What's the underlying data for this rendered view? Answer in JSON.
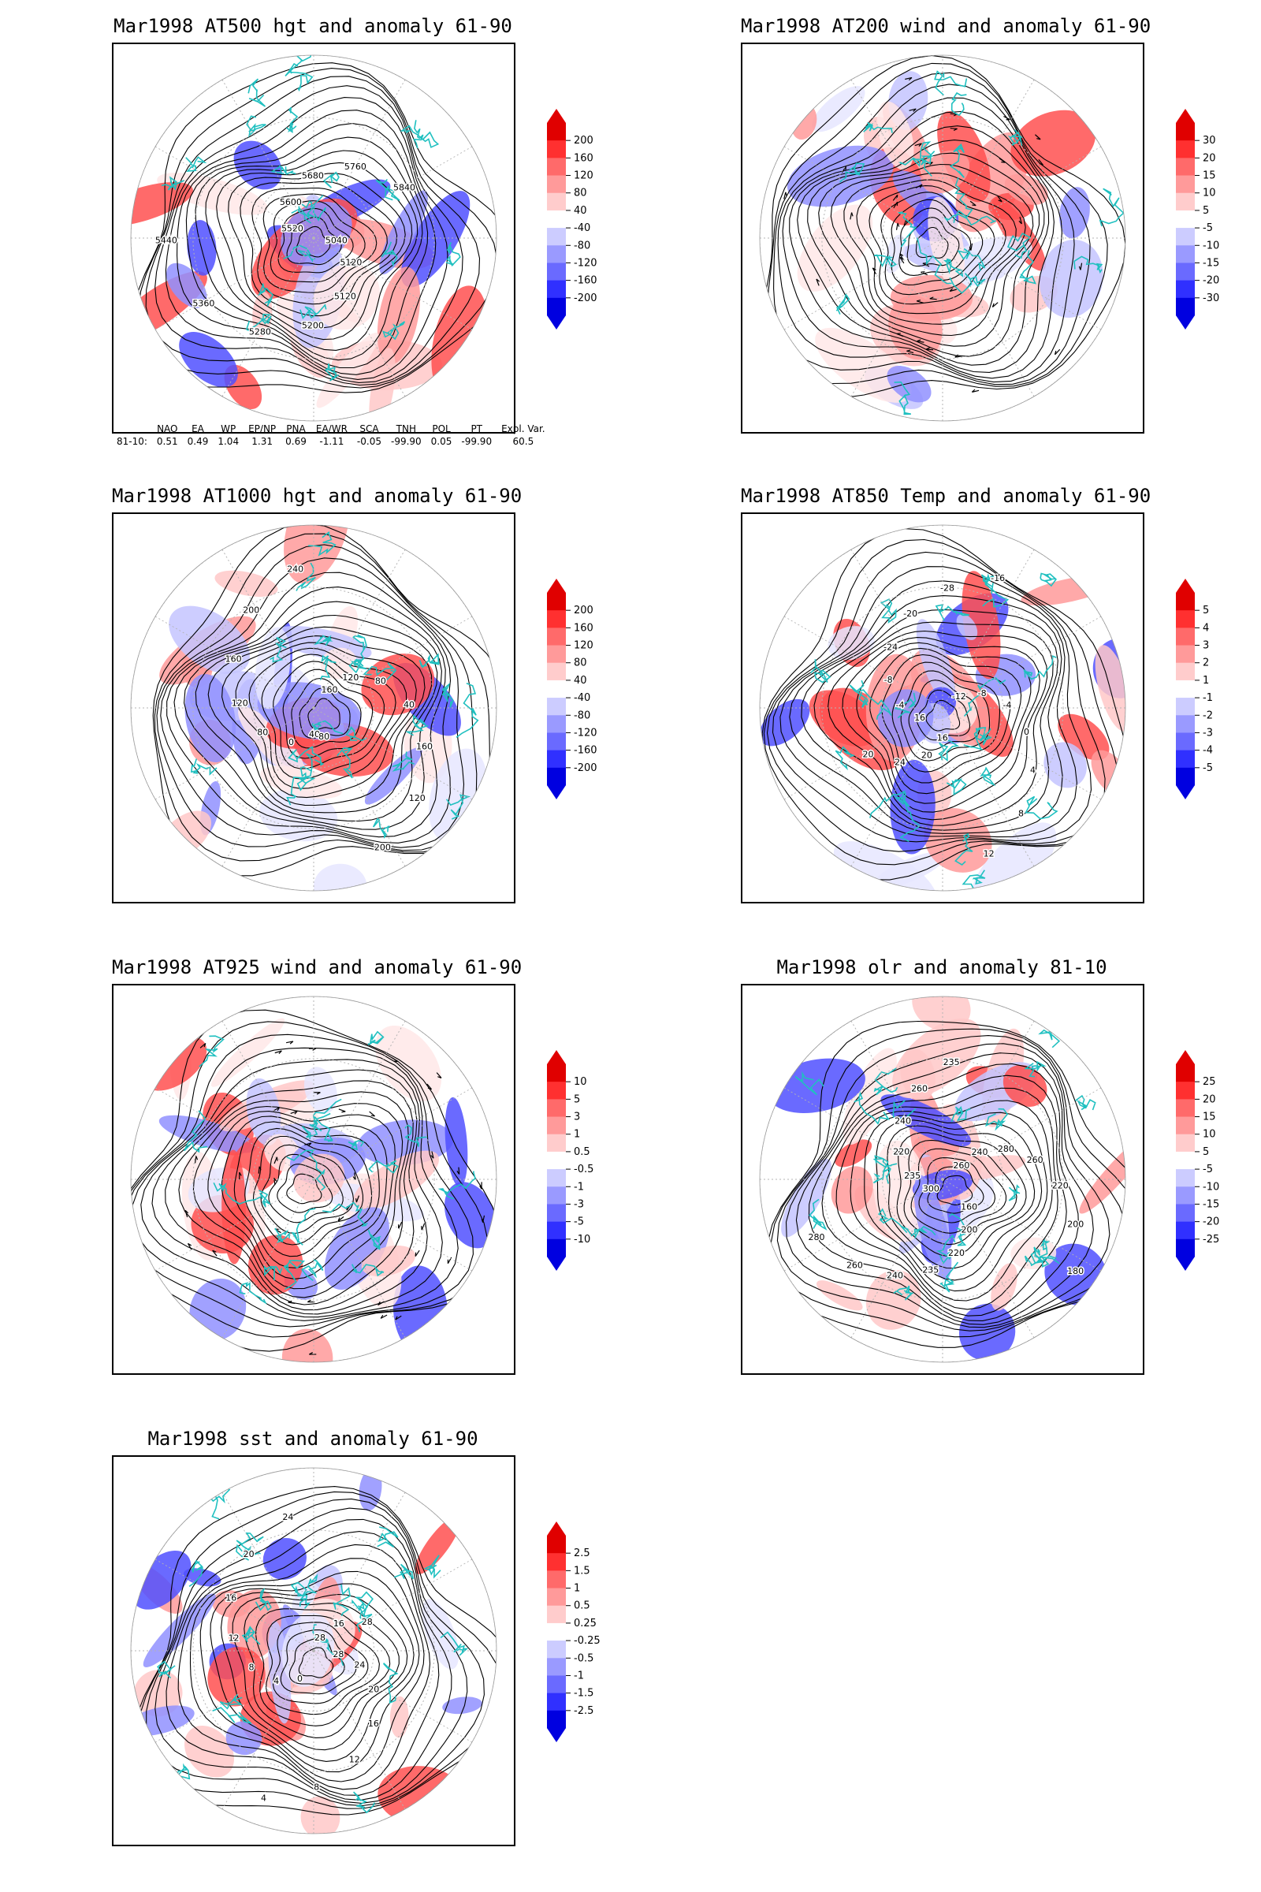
{
  "colors": {
    "coast": "#20c0c0",
    "contour": "#000000",
    "grid": "#b4b4b4",
    "pos": [
      "#ffe8e8",
      "#ffc8c8",
      "#ff9a9a",
      "#ff5050",
      "#e00000"
    ],
    "neg": [
      "#e6e6ff",
      "#c4c4ff",
      "#9090ff",
      "#5050ff",
      "#1a1aee"
    ]
  },
  "panels": [
    {
      "id": "hgt500",
      "title": "Mar1998 AT500 hgt and anomaly 61-90",
      "colorbar": [
        "200",
        "160",
        "120",
        "80",
        "40",
        "-40",
        "-80",
        "-120",
        "-160",
        "-200"
      ],
      "contour_labels": [
        "5040",
        "5120",
        "5120",
        "5200",
        "5280",
        "5360",
        "5440",
        "5520",
        "5600",
        "5680",
        "5760",
        "5840"
      ],
      "has_wind_arrows": false
    },
    {
      "id": "wind200",
      "title": "Mar1998 AT200 wind and anomaly 61-90",
      "colorbar": [
        "30",
        "20",
        "15",
        "10",
        "5",
        "-5",
        "-10",
        "-15",
        "-20",
        "-30"
      ],
      "contour_labels": [],
      "has_wind_arrows": true
    },
    {
      "id": "hgt1000",
      "title": "Mar1998 AT1000 hgt and anomaly 61-90",
      "colorbar": [
        "200",
        "160",
        "120",
        "80",
        "40",
        "-40",
        "-80",
        "-120",
        "-160",
        "-200"
      ],
      "contour_labels": [
        "40",
        "0",
        "80",
        "120",
        "160",
        "200",
        "240",
        "160",
        "120",
        "80",
        "40",
        "160",
        "120",
        "200",
        "80"
      ],
      "has_wind_arrows": false
    },
    {
      "id": "temp850",
      "title": "Mar1998 AT850 Temp and anomaly 61-90",
      "colorbar": [
        "5",
        "4",
        "3",
        "2",
        "1",
        "-1",
        "-2",
        "-3",
        "-4",
        "-5"
      ],
      "contour_labels": [
        "16",
        "-4",
        "-8",
        "-24",
        "-20",
        "-28",
        "-16",
        "-12",
        "-8",
        "-4",
        "0",
        "4",
        "8",
        "12",
        "16",
        "20",
        "24",
        "20"
      ],
      "has_wind_arrows": false
    },
    {
      "id": "wind925",
      "title": "Mar1998 AT925 wind and anomaly 61-90",
      "colorbar": [
        "10",
        "5",
        "3",
        "1",
        "0.5",
        "-0.5",
        "-1",
        "-3",
        "-5",
        "-10"
      ],
      "contour_labels": [],
      "has_wind_arrows": true
    },
    {
      "id": "olr",
      "title": "Mar1998 olr and anomaly 81-10",
      "colorbar": [
        "25",
        "20",
        "15",
        "10",
        "5",
        "-5",
        "-10",
        "-15",
        "-20",
        "-25"
      ],
      "contour_labels": [
        "260",
        "240",
        "280",
        "260",
        "220",
        "200",
        "180",
        "160",
        "200",
        "220",
        "235",
        "240",
        "260",
        "280",
        "300",
        "235",
        "220",
        "240",
        "260",
        "235"
      ],
      "has_wind_arrows": false
    },
    {
      "id": "sst",
      "title": "Mar1998 sst and anomaly 61-90",
      "colorbar": [
        "2.5",
        "1.5",
        "1",
        "0.5",
        "0.25",
        "-0.25",
        "-0.5",
        "-1",
        "-1.5",
        "-2.5"
      ],
      "contour_labels": [
        "28",
        "24",
        "20",
        "16",
        "12",
        "8",
        "4",
        "0",
        "4",
        "8",
        "12",
        "16",
        "20",
        "24",
        "28",
        "16",
        "28"
      ],
      "has_wind_arrows": false
    }
  ],
  "indices": {
    "headers": [
      "NAO",
      "EA",
      "WP",
      "EP/NP",
      "PNA",
      "EA/WR",
      "SCA",
      "TNH",
      "POL",
      "PT",
      "Expl. Var."
    ],
    "row_label": "81-10:",
    "values": [
      "0.51",
      "0.49",
      "1.04",
      "1.31",
      "0.69",
      "-1.11",
      "-0.05",
      "-99.90",
      "0.05",
      "-99.90",
      "60.5"
    ]
  }
}
